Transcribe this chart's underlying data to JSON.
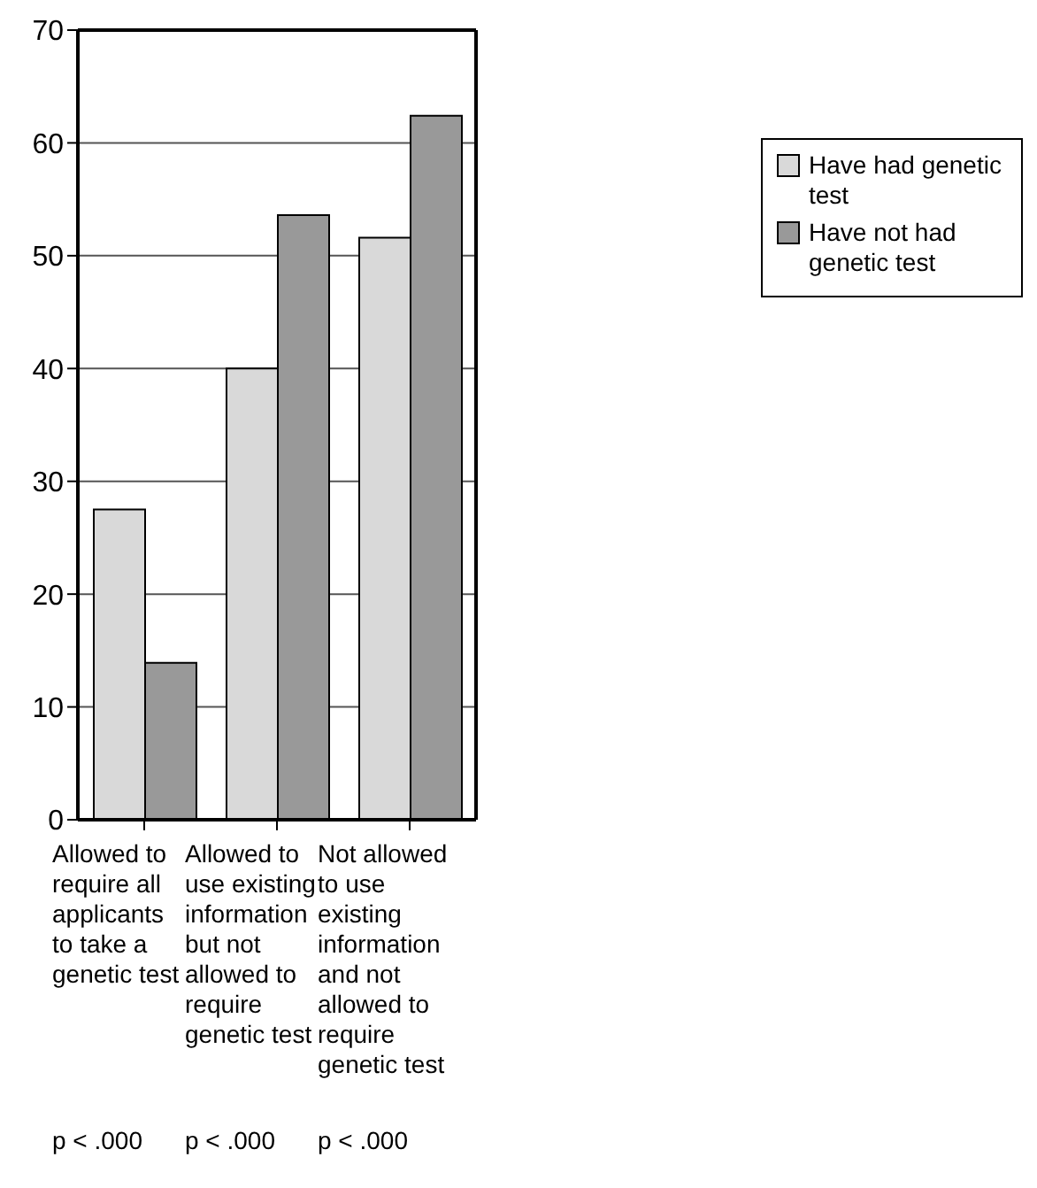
{
  "chart_data": {
    "type": "bar",
    "categories": [
      "Allowed to require all applicants to take a genetic test",
      "Allowed to use existing information but not allowed to require genetic test",
      "Not allowed to use existing information and not allowed to require genetic test"
    ],
    "series": [
      {
        "name": "Have had genetic test",
        "color": "#d9d9d9",
        "values": [
          27.5,
          40.0,
          51.6
        ]
      },
      {
        "name": "Have not had genetic test",
        "color": "#999999",
        "values": [
          13.9,
          53.6,
          62.4
        ]
      }
    ],
    "ylim": [
      0,
      70
    ],
    "yticks": [
      0,
      10,
      20,
      30,
      40,
      50,
      60,
      70
    ],
    "grid": "y",
    "legend": "right",
    "annotations": [
      "p < .000",
      "p < .000",
      "p < .000"
    ]
  }
}
